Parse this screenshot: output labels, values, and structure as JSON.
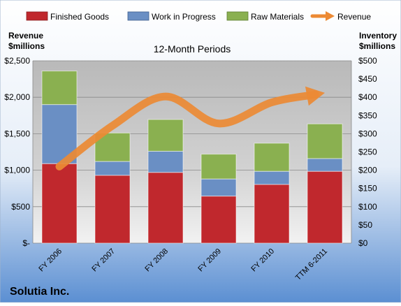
{
  "colors": {
    "finished_goods": "#c0282d",
    "work_in_progress": "#6a8fc4",
    "raw_materials": "#8ab050",
    "revenue": "#ec8a34"
  },
  "chart_data": {
    "type": "bar",
    "title": "12-Month Periods",
    "company": "Solutia Inc.",
    "left_axis_label": [
      "Revenue",
      "$millions"
    ],
    "right_axis_label": [
      "Inventory",
      "$millions"
    ],
    "categories": [
      "FY 2006",
      "FY 2007",
      "FY 2008",
      "FY 2009",
      "FY 2010",
      "TTM 6-2011"
    ],
    "left_ylim": [
      0,
      2500
    ],
    "left_ticks": [
      "$-",
      "$500",
      "$1,000",
      "$1,500",
      "$2,000",
      "$2,500"
    ],
    "right_ylim": [
      0,
      500
    ],
    "right_ticks": [
      "$0",
      "$50",
      "$100",
      "$150",
      "$200",
      "$250",
      "$300",
      "$350",
      "$400",
      "$450",
      "$500"
    ],
    "grid": true,
    "legend_position": "top",
    "stacked_axis": "right",
    "series": [
      {
        "name": "Finished Goods",
        "color_key": "finished_goods",
        "values": [
          218,
          186,
          194,
          129,
          161,
          197
        ]
      },
      {
        "name": "Work in Progress",
        "color_key": "work_in_progress",
        "values": [
          162,
          38,
          58,
          47,
          36,
          35
        ]
      },
      {
        "name": "Raw Materials",
        "color_key": "raw_materials",
        "values": [
          92,
          78,
          87,
          68,
          77,
          95
        ]
      }
    ],
    "line_series": {
      "name": "Revenue",
      "color_key": "revenue",
      "axis": "left",
      "values": [
        1050,
        1610,
        2010,
        1640,
        1930,
        2060
      ]
    }
  }
}
